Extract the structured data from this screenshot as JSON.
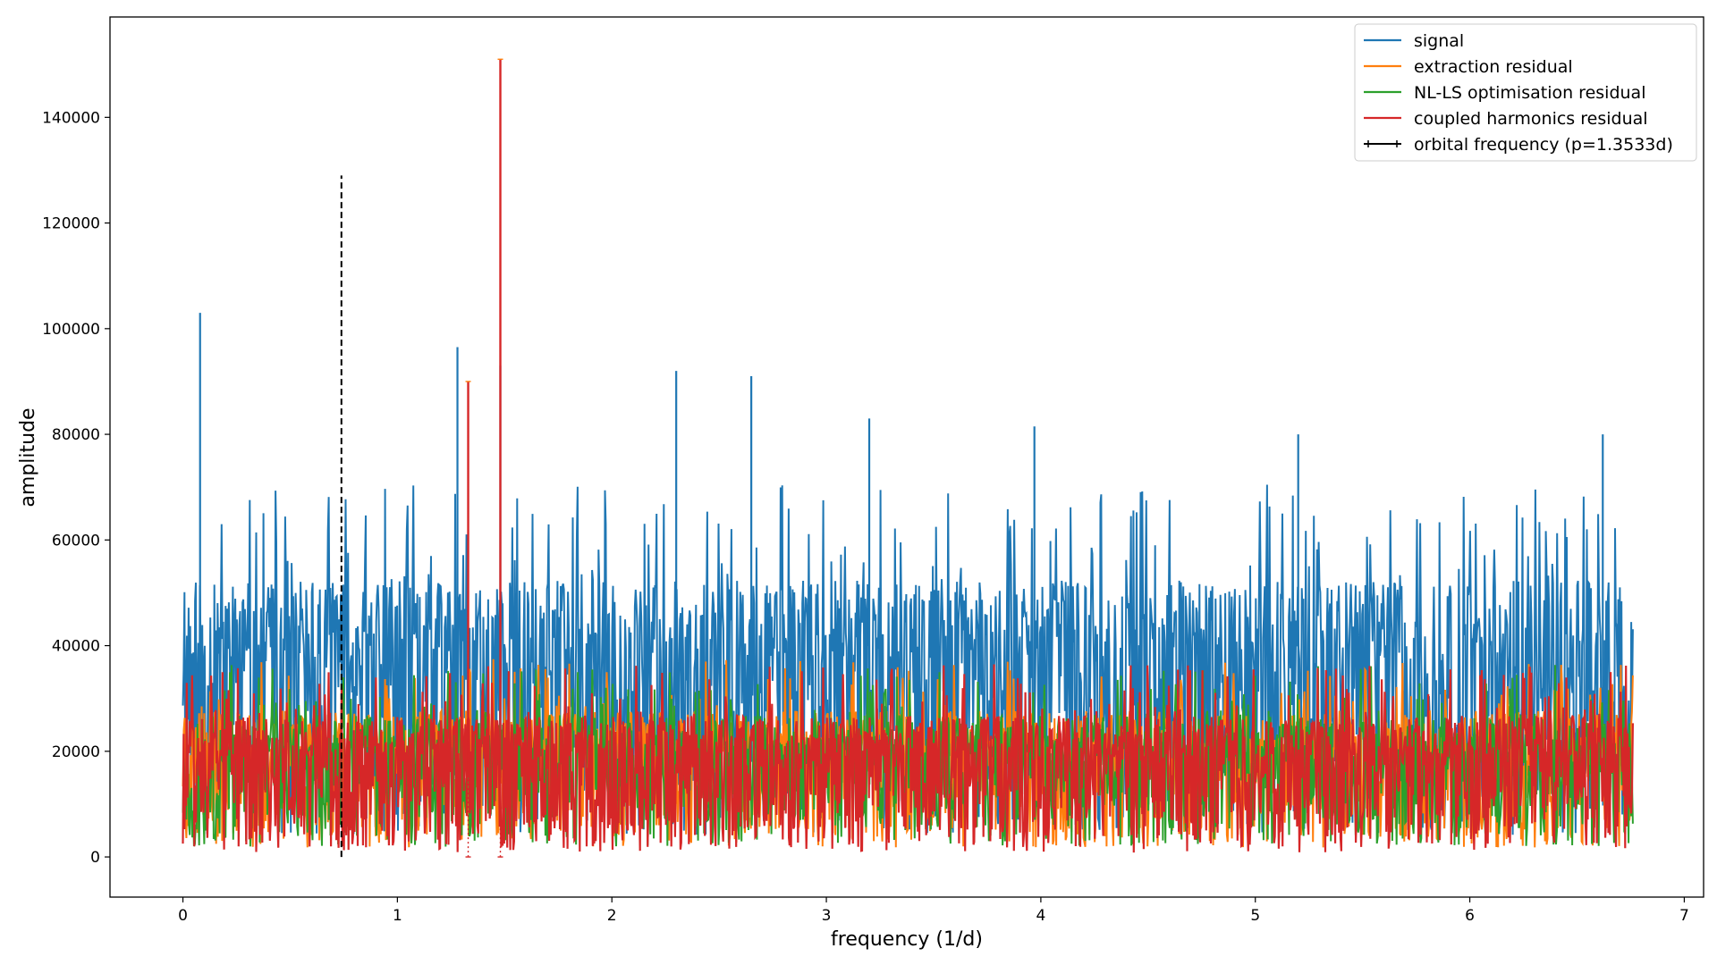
{
  "chart_data": {
    "type": "line",
    "xlabel": "frequency (1/d)",
    "ylabel": "amplitude",
    "xlim": [
      -0.34,
      7.09
    ],
    "ylim": [
      -7600,
      159000
    ],
    "grid": false,
    "legend_position": "top-right",
    "x_ticks": [
      0,
      1,
      2,
      3,
      4,
      5,
      6,
      7
    ],
    "y_ticks": [
      0,
      20000,
      40000,
      60000,
      80000,
      100000,
      120000,
      140000
    ],
    "x_tick_labels": [
      "0",
      "1",
      "2",
      "3",
      "4",
      "5",
      "6",
      "7"
    ],
    "y_tick_labels": [
      "0",
      "20000",
      "40000",
      "60000",
      "80000",
      "100000",
      "120000",
      "140000"
    ],
    "x_range": [
      0,
      6.76
    ],
    "series": [
      {
        "name": "signal",
        "color": "#1f77b4",
        "baseline": 38000,
        "spread": 26000,
        "peaks_x": [
          0.08,
          1.28,
          1.48,
          2.3,
          2.65,
          3.2,
          3.97,
          5.2,
          6.62
        ],
        "peaks_y": [
          103000,
          96500,
          93000,
          92000,
          91000,
          83000,
          81500,
          80000,
          80000
        ]
      },
      {
        "name": "extraction residual",
        "color": "#ff7f0e",
        "baseline": 20000,
        "spread": 14000
      },
      {
        "name": "NL-LS optimisation residual",
        "color": "#2ca02c",
        "baseline": 19500,
        "spread": 13500
      },
      {
        "name": "coupled harmonics residual",
        "color": "#d62728",
        "baseline": 19000,
        "spread": 14000,
        "peaks_x": [
          1.33,
          1.48
        ],
        "peaks_y": [
          90000,
          151000
        ]
      }
    ],
    "orbital_frequency": {
      "name": "orbital frequency (p=1.3533d)",
      "color": "#000000",
      "x": 0.739,
      "y_range": [
        0,
        129000
      ],
      "dotted_x": [
        1.33,
        1.48
      ],
      "dotted_top": [
        90000,
        151000
      ]
    }
  }
}
